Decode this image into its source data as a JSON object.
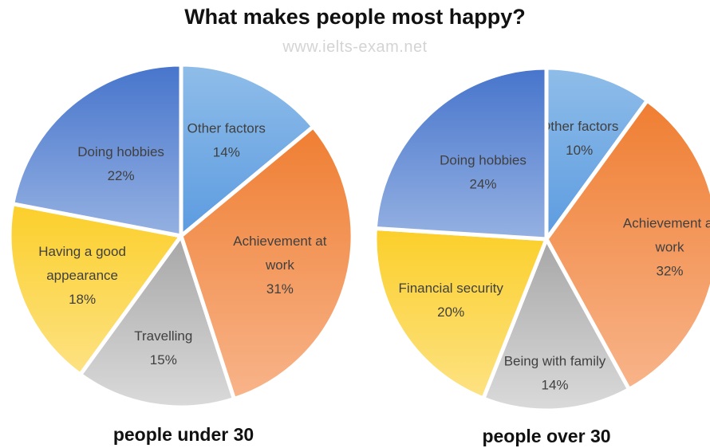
{
  "title": "What makes people most happy?",
  "watermark": "www.ielts-exam.net",
  "chart_data": [
    {
      "type": "pie",
      "caption": "people under 30",
      "start_angle_deg": 0,
      "slices": [
        {
          "label": [
            "Other factors"
          ],
          "value": 14,
          "value_label": "14%",
          "color": "light-blue"
        },
        {
          "label": [
            "Achievement at",
            "work"
          ],
          "value": 31,
          "value_label": "31%",
          "color": "orange"
        },
        {
          "label": [
            "Travelling"
          ],
          "value": 15,
          "value_label": "15%",
          "color": "grey"
        },
        {
          "label": [
            "Having a good",
            "appearance"
          ],
          "value": 18,
          "value_label": "18%",
          "color": "yellow"
        },
        {
          "label": [
            "Doing hobbies"
          ],
          "value": 22,
          "value_label": "22%",
          "color": "blue"
        }
      ]
    },
    {
      "type": "pie",
      "caption": "people over 30",
      "start_angle_deg": 0,
      "slices": [
        {
          "label": [
            "Other factors"
          ],
          "value": 10,
          "value_label": "10%",
          "color": "light-blue"
        },
        {
          "label": [
            "Achievement at",
            "work"
          ],
          "value": 32,
          "value_label": "32%",
          "color": "orange"
        },
        {
          "label": [
            "Being with family"
          ],
          "value": 14,
          "value_label": "14%",
          "color": "grey"
        },
        {
          "label": [
            "Financial security"
          ],
          "value": 20,
          "value_label": "20%",
          "color": "yellow"
        },
        {
          "label": [
            "Doing hobbies"
          ],
          "value": 24,
          "value_label": "24%",
          "color": "blue"
        }
      ]
    }
  ]
}
